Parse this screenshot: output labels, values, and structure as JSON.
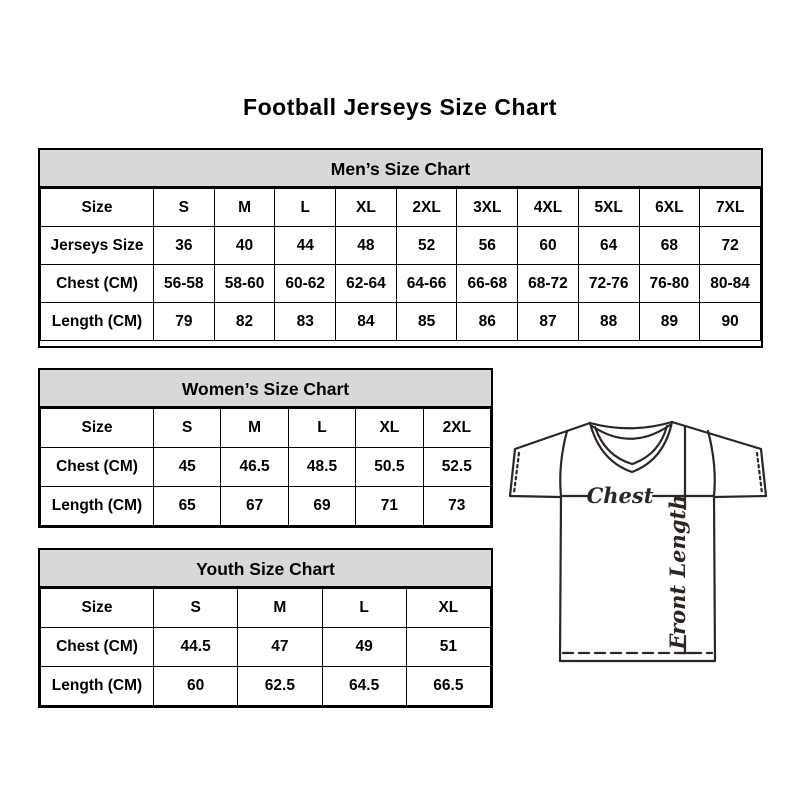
{
  "page": {
    "title": "Football Jerseys Size Chart"
  },
  "colors": {
    "table_header_bg": "#d8d8d8",
    "table_border": "#000000",
    "text": "#000000",
    "diagram_line": "#2d2522"
  },
  "tables": {
    "men": {
      "title": "Men’s Size Chart",
      "rows": [
        [
          "Size",
          "S",
          "M",
          "L",
          "XL",
          "2XL",
          "3XL",
          "4XL",
          "5XL",
          "6XL",
          "7XL"
        ],
        [
          "Jerseys Size",
          "36",
          "40",
          "44",
          "48",
          "52",
          "56",
          "60",
          "64",
          "68",
          "72"
        ],
        [
          "Chest (CM)",
          "56-58",
          "58-60",
          "60-62",
          "62-64",
          "64-66",
          "66-68",
          "68-72",
          "72-76",
          "76-80",
          "80-84"
        ],
        [
          "Length (CM)",
          "79",
          "82",
          "83",
          "84",
          "85",
          "86",
          "87",
          "88",
          "89",
          "90"
        ]
      ]
    },
    "women": {
      "title": "Women’s Size Chart",
      "rows": [
        [
          "Size",
          "S",
          "M",
          "L",
          "XL",
          "2XL"
        ],
        [
          "Chest (CM)",
          "45",
          "46.5",
          "48.5",
          "50.5",
          "52.5"
        ],
        [
          "Length (CM)",
          "65",
          "67",
          "69",
          "71",
          "73"
        ]
      ]
    },
    "youth": {
      "title": "Youth Size Chart",
      "rows": [
        [
          "Size",
          "S",
          "M",
          "L",
          "XL"
        ],
        [
          "Chest (CM)",
          "44.5",
          "47",
          "49",
          "51"
        ],
        [
          "Length (CM)",
          "60",
          "62.5",
          "64.5",
          "66.5"
        ]
      ]
    }
  },
  "diagram": {
    "chest_label": "Chest",
    "front_length_label": "Front Length"
  }
}
